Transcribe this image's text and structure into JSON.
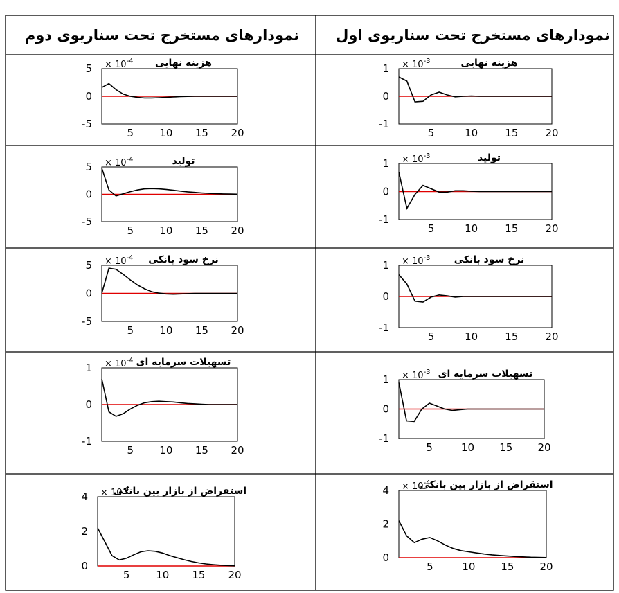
{
  "table": {
    "header_right": "نمودارهای مستخرج تحت سناریوی اول",
    "header_left": "نمودارهای مستخرج تحت سناریوی دوم"
  },
  "colors": {
    "response": "#000000",
    "zero_line": "#e00000",
    "grid_border": "#000000"
  },
  "chart_data": [
    {
      "type": "line",
      "title": "هزینه نهایی",
      "scale": "10^-3",
      "column": "scenario-1",
      "x": [
        1,
        2,
        3,
        4,
        5,
        6,
        7,
        8,
        9,
        10,
        11,
        12,
        13,
        14,
        15,
        16,
        17,
        18,
        19,
        20
      ],
      "series": [
        {
          "values": [
            0.7,
            0.55,
            -0.2,
            -0.18,
            0.05,
            0.15,
            0.05,
            -0.02,
            0.0,
            0.01,
            0.0,
            0.0,
            0.0,
            0.0,
            0.0,
            0.0,
            0.0,
            0.0,
            0.0,
            0.0
          ]
        }
      ],
      "xlim": [
        1,
        20
      ],
      "ylim": [
        -1,
        1
      ],
      "xticks": [
        5,
        10,
        15,
        20
      ],
      "yticks": [
        1,
        0,
        -1
      ]
    },
    {
      "type": "line",
      "title": "هزینه نهایی",
      "scale": "10^-4",
      "column": "scenario-2",
      "x": [
        1,
        2,
        3,
        4,
        5,
        6,
        7,
        8,
        9,
        10,
        11,
        12,
        13,
        14,
        15,
        16,
        17,
        18,
        19,
        20
      ],
      "series": [
        {
          "values": [
            1.6,
            2.3,
            1.2,
            0.4,
            0.0,
            -0.2,
            -0.3,
            -0.3,
            -0.25,
            -0.2,
            -0.12,
            -0.06,
            -0.03,
            0.0,
            0.0,
            0.0,
            0.0,
            0.0,
            0.0,
            0.0
          ]
        }
      ],
      "xlim": [
        1,
        20
      ],
      "ylim": [
        -5,
        5
      ],
      "xticks": [
        5,
        10,
        15,
        20
      ],
      "yticks": [
        5,
        0,
        -5
      ]
    },
    {
      "type": "line",
      "title": "تولید",
      "scale": "10^-3",
      "column": "scenario-1",
      "x": [
        1,
        2,
        3,
        4,
        5,
        6,
        7,
        8,
        9,
        10,
        11,
        12,
        13,
        14,
        15,
        16,
        17,
        18,
        19,
        20
      ],
      "series": [
        {
          "values": [
            0.7,
            -0.6,
            -0.1,
            0.22,
            0.1,
            -0.02,
            -0.02,
            0.03,
            0.03,
            0.01,
            0.0,
            0.0,
            0.0,
            0.0,
            0.0,
            0.0,
            0.0,
            0.0,
            0.0,
            0.0
          ]
        }
      ],
      "xlim": [
        1,
        20
      ],
      "ylim": [
        -1,
        1
      ],
      "xticks": [
        5,
        10,
        15,
        20
      ],
      "yticks": [
        1,
        0,
        -1
      ]
    },
    {
      "type": "line",
      "title": "تولید",
      "scale": "10^-4",
      "column": "scenario-2",
      "x": [
        1,
        2,
        3,
        4,
        5,
        6,
        7,
        8,
        9,
        10,
        11,
        12,
        13,
        14,
        15,
        16,
        17,
        18,
        19,
        20
      ],
      "series": [
        {
          "values": [
            4.8,
            0.8,
            -0.3,
            0.1,
            0.5,
            0.8,
            1.0,
            1.05,
            1.0,
            0.9,
            0.75,
            0.6,
            0.45,
            0.35,
            0.25,
            0.18,
            0.12,
            0.08,
            0.05,
            0.03
          ]
        }
      ],
      "xlim": [
        1,
        20
      ],
      "ylim": [
        -5,
        5
      ],
      "xticks": [
        5,
        10,
        15,
        20
      ],
      "yticks": [
        5,
        0,
        -5
      ]
    },
    {
      "type": "line",
      "title": "نرخ سود بانکی",
      "scale": "10^-3",
      "column": "scenario-1",
      "x": [
        1,
        2,
        3,
        4,
        5,
        6,
        7,
        8,
        9,
        10,
        11,
        12,
        13,
        14,
        15,
        16,
        17,
        18,
        19,
        20
      ],
      "series": [
        {
          "values": [
            0.7,
            0.4,
            -0.15,
            -0.18,
            -0.02,
            0.05,
            0.02,
            -0.02,
            0.0,
            0.0,
            0.0,
            0.0,
            0.0,
            0.0,
            0.0,
            0.0,
            0.0,
            0.0,
            0.0,
            0.0
          ]
        }
      ],
      "xlim": [
        1,
        20
      ],
      "ylim": [
        -1,
        1
      ],
      "xticks": [
        5,
        10,
        15,
        20
      ],
      "yticks": [
        1,
        0,
        -1
      ]
    },
    {
      "type": "line",
      "title": "نرخ سود بانکی",
      "scale": "10^-4",
      "column": "scenario-2",
      "x": [
        1,
        2,
        3,
        4,
        5,
        6,
        7,
        8,
        9,
        10,
        11,
        12,
        13,
        14,
        15,
        16,
        17,
        18,
        19,
        20
      ],
      "series": [
        {
          "values": [
            0.0,
            4.5,
            4.3,
            3.4,
            2.4,
            1.5,
            0.8,
            0.3,
            0.05,
            -0.1,
            -0.15,
            -0.1,
            -0.05,
            0.0,
            0.0,
            0.0,
            0.0,
            0.0,
            0.0,
            0.0
          ]
        }
      ],
      "xlim": [
        1,
        20
      ],
      "ylim": [
        -5,
        5
      ],
      "xticks": [
        5,
        10,
        15,
        20
      ],
      "yticks": [
        5,
        0,
        -5
      ]
    },
    {
      "type": "line",
      "title": "تسهیلات سرمایه ای",
      "scale": "10^-3",
      "column": "scenario-1",
      "x": [
        1,
        2,
        3,
        4,
        5,
        6,
        7,
        8,
        9,
        10,
        11,
        12,
        13,
        14,
        15,
        16,
        17,
        18,
        19,
        20
      ],
      "series": [
        {
          "values": [
            0.9,
            -0.4,
            -0.42,
            0.0,
            0.2,
            0.1,
            0.0,
            -0.05,
            -0.02,
            0.0,
            0.0,
            0.0,
            0.0,
            0.0,
            0.0,
            0.0,
            0.0,
            0.0,
            0.0,
            0.0
          ]
        }
      ],
      "xlim": [
        1,
        20
      ],
      "ylim": [
        -1,
        1
      ],
      "xticks": [
        5,
        10,
        15,
        20
      ],
      "yticks": [
        1,
        0,
        -1
      ]
    },
    {
      "type": "line",
      "title": "تسهیلات سرمایه ای",
      "scale": "10^-4",
      "column": "scenario-2",
      "x": [
        1,
        2,
        3,
        4,
        5,
        6,
        7,
        8,
        9,
        10,
        11,
        12,
        13,
        14,
        15,
        16,
        17,
        18,
        19,
        20
      ],
      "series": [
        {
          "values": [
            0.7,
            -0.2,
            -0.32,
            -0.25,
            -0.12,
            -0.02,
            0.05,
            0.08,
            0.09,
            0.08,
            0.07,
            0.05,
            0.03,
            0.02,
            0.01,
            0.0,
            0.0,
            0.0,
            0.0,
            0.0
          ]
        }
      ],
      "xlim": [
        1,
        20
      ],
      "ylim": [
        -1,
        1
      ],
      "xticks": [
        5,
        10,
        15,
        20
      ],
      "yticks": [
        1,
        0,
        -1
      ]
    },
    {
      "type": "line",
      "title": "استقراض از بازار بین بانکی",
      "scale": "10^-4",
      "column": "scenario-1",
      "x": [
        1,
        2,
        3,
        4,
        5,
        6,
        7,
        8,
        9,
        10,
        11,
        12,
        13,
        14,
        15,
        16,
        17,
        18,
        19,
        20
      ],
      "series": [
        {
          "values": [
            2.2,
            1.3,
            0.9,
            1.1,
            1.2,
            1.0,
            0.75,
            0.55,
            0.42,
            0.35,
            0.28,
            0.22,
            0.17,
            0.13,
            0.1,
            0.07,
            0.05,
            0.03,
            0.02,
            0.01
          ]
        }
      ],
      "xlim": [
        1,
        20
      ],
      "ylim": [
        0,
        4
      ],
      "xticks": [
        5,
        10,
        15,
        20
      ],
      "yticks": [
        4,
        2,
        0
      ]
    },
    {
      "type": "line",
      "title": "استقراض از بازار بین بانکی",
      "scale": "10^-4",
      "column": "scenario-2",
      "x": [
        1,
        2,
        3,
        4,
        5,
        6,
        7,
        8,
        9,
        10,
        11,
        12,
        13,
        14,
        15,
        16,
        17,
        18,
        19,
        20
      ],
      "series": [
        {
          "values": [
            2.2,
            1.4,
            0.6,
            0.35,
            0.45,
            0.65,
            0.82,
            0.88,
            0.85,
            0.75,
            0.6,
            0.48,
            0.36,
            0.26,
            0.18,
            0.12,
            0.08,
            0.05,
            0.03,
            0.01
          ]
        }
      ],
      "xlim": [
        1,
        20
      ],
      "ylim": [
        0,
        4
      ],
      "xticks": [
        5,
        10,
        15,
        20
      ],
      "yticks": [
        4,
        2,
        0
      ]
    }
  ]
}
